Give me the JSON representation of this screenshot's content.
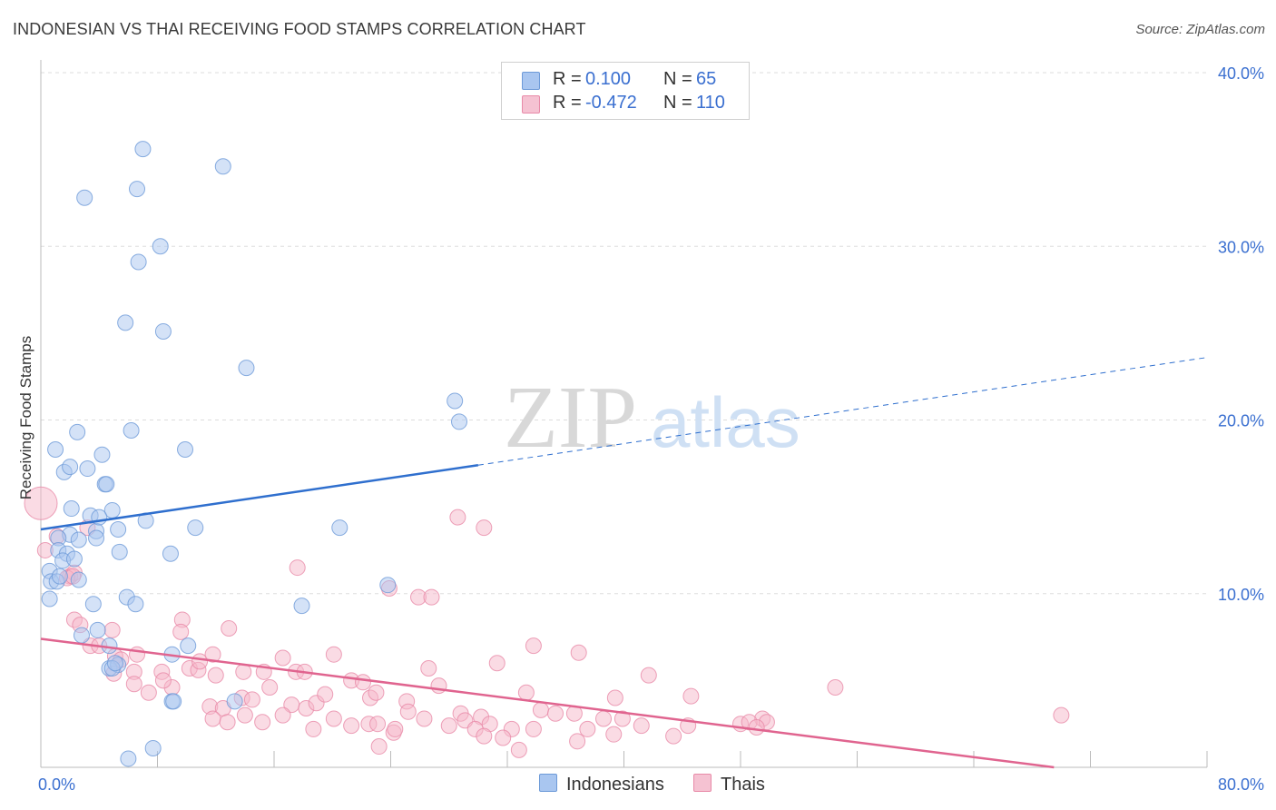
{
  "header": {
    "title": "INDONESIAN VS THAI RECEIVING FOOD STAMPS CORRELATION CHART",
    "source": "Source: ZipAtlas.com"
  },
  "watermark": {
    "zip": "ZIP",
    "atlas": "atlas"
  },
  "colors": {
    "blue_fill": "#a9c6f0",
    "blue_stroke": "#6d9ad8",
    "blue_line": "#2f6fce",
    "pink_fill": "#f5b8ca",
    "pink_stroke": "#e88aa8",
    "pink_line": "#e0648f",
    "tick_label": "#3a6fd0",
    "grid": "#dddddd"
  },
  "legend": {
    "items": [
      {
        "r_label": "R =",
        "r_value": "0.100",
        "n_label": "N =",
        "n_value": "65"
      },
      {
        "r_label": "R =",
        "r_value": "-0.472",
        "n_label": "N =",
        "n_value": "110"
      }
    ]
  },
  "bottom_legend": {
    "items": [
      "Indonesians",
      "Thais"
    ]
  },
  "chart_data": {
    "type": "scatter",
    "xlabel": "",
    "ylabel": "Receiving Food Stamps",
    "xlim": [
      0,
      80
    ],
    "ylim": [
      0,
      40
    ],
    "x_tick_labels": [
      "0.0%",
      "80.0%"
    ],
    "y_tick_values": [
      10,
      20,
      30,
      40
    ],
    "y_tick_labels": [
      "10.0%",
      "20.0%",
      "30.0%",
      "40.0%"
    ],
    "grid": true,
    "series": [
      {
        "name": "Indonesians",
        "r": 0.1,
        "n": 65,
        "trend": {
          "x0": 0,
          "y0": 13.7,
          "x1": 30,
          "y1": 17.4,
          "dash_to_x": 80,
          "dash_to_y": 23.6
        },
        "points": [
          [
            7.0,
            35.6
          ],
          [
            12.5,
            34.6
          ],
          [
            3.0,
            32.8
          ],
          [
            6.6,
            33.3
          ],
          [
            8.2,
            30.0
          ],
          [
            6.7,
            29.1
          ],
          [
            5.8,
            25.6
          ],
          [
            8.4,
            25.1
          ],
          [
            14.1,
            23.0
          ],
          [
            28.4,
            21.1
          ],
          [
            28.7,
            19.9
          ],
          [
            2.5,
            19.3
          ],
          [
            6.2,
            19.4
          ],
          [
            1.0,
            18.3
          ],
          [
            4.2,
            18.0
          ],
          [
            9.9,
            18.3
          ],
          [
            1.6,
            17.0
          ],
          [
            2.0,
            17.3
          ],
          [
            3.2,
            17.2
          ],
          [
            4.4,
            16.3
          ],
          [
            4.5,
            16.3
          ],
          [
            2.1,
            14.9
          ],
          [
            4.9,
            14.8
          ],
          [
            3.4,
            14.5
          ],
          [
            7.2,
            14.2
          ],
          [
            10.6,
            13.8
          ],
          [
            20.5,
            13.8
          ],
          [
            2.0,
            13.4
          ],
          [
            3.8,
            13.6
          ],
          [
            5.3,
            13.7
          ],
          [
            1.2,
            13.2
          ],
          [
            2.6,
            13.1
          ],
          [
            3.8,
            13.2
          ],
          [
            1.2,
            12.5
          ],
          [
            1.8,
            12.3
          ],
          [
            5.4,
            12.4
          ],
          [
            8.9,
            12.3
          ],
          [
            1.5,
            11.9
          ],
          [
            0.6,
            11.3
          ],
          [
            0.7,
            10.7
          ],
          [
            1.1,
            10.7
          ],
          [
            2.6,
            10.8
          ],
          [
            23.8,
            10.5
          ],
          [
            0.6,
            9.7
          ],
          [
            3.6,
            9.4
          ],
          [
            5.9,
            9.8
          ],
          [
            6.5,
            9.4
          ],
          [
            17.9,
            9.3
          ],
          [
            3.9,
            7.9
          ],
          [
            2.8,
            7.6
          ],
          [
            4.7,
            7.0
          ],
          [
            9.0,
            6.5
          ],
          [
            10.1,
            7.0
          ],
          [
            4.7,
            5.7
          ],
          [
            5.3,
            5.9
          ],
          [
            4.9,
            5.7
          ],
          [
            5.1,
            6.0
          ],
          [
            9.0,
            3.8
          ],
          [
            9.1,
            3.8
          ],
          [
            13.3,
            3.8
          ],
          [
            7.7,
            1.1
          ],
          [
            6.0,
            0.5
          ],
          [
            1.3,
            11.0
          ],
          [
            2.3,
            12.0
          ],
          [
            4.0,
            14.4
          ]
        ]
      },
      {
        "name": "Thais",
        "r": -0.472,
        "n": 110,
        "trend": {
          "x0": 0,
          "y0": 7.4,
          "x1": 69.5,
          "y1": 0
        },
        "points": [
          [
            0.0,
            15.2
          ],
          [
            0.3,
            12.5
          ],
          [
            1.1,
            13.3
          ],
          [
            2.0,
            11.0
          ],
          [
            2.3,
            11.2
          ],
          [
            3.2,
            13.8
          ],
          [
            1.8,
            10.9
          ],
          [
            2.2,
            11.0
          ],
          [
            17.6,
            11.5
          ],
          [
            23.9,
            10.3
          ],
          [
            25.9,
            9.8
          ],
          [
            26.8,
            9.8
          ],
          [
            28.6,
            14.4
          ],
          [
            30.4,
            13.8
          ],
          [
            2.3,
            8.5
          ],
          [
            2.7,
            8.2
          ],
          [
            4.9,
            7.9
          ],
          [
            9.7,
            8.5
          ],
          [
            12.9,
            8.0
          ],
          [
            9.6,
            7.8
          ],
          [
            3.4,
            7.0
          ],
          [
            4.0,
            7.0
          ],
          [
            5.1,
            6.4
          ],
          [
            5.5,
            6.2
          ],
          [
            6.6,
            6.5
          ],
          [
            33.8,
            7.0
          ],
          [
            36.9,
            6.6
          ],
          [
            5.0,
            5.4
          ],
          [
            6.4,
            5.5
          ],
          [
            8.3,
            5.5
          ],
          [
            9.0,
            4.6
          ],
          [
            10.2,
            5.7
          ],
          [
            10.8,
            5.6
          ],
          [
            12.0,
            5.3
          ],
          [
            13.9,
            5.5
          ],
          [
            15.3,
            5.5
          ],
          [
            16.6,
            6.3
          ],
          [
            17.5,
            5.5
          ],
          [
            18.1,
            5.5
          ],
          [
            20.1,
            6.5
          ],
          [
            21.3,
            5.0
          ],
          [
            22.1,
            4.9
          ],
          [
            26.6,
            5.7
          ],
          [
            31.3,
            6.0
          ],
          [
            41.7,
            5.3
          ],
          [
            54.5,
            4.6
          ],
          [
            6.4,
            4.8
          ],
          [
            7.4,
            4.3
          ],
          [
            8.4,
            5.0
          ],
          [
            10.9,
            6.1
          ],
          [
            11.8,
            6.5
          ],
          [
            11.6,
            3.5
          ],
          [
            12.5,
            3.4
          ],
          [
            13.8,
            4.0
          ],
          [
            14.5,
            3.9
          ],
          [
            15.7,
            4.6
          ],
          [
            17.2,
            3.6
          ],
          [
            18.2,
            3.4
          ],
          [
            18.9,
            3.7
          ],
          [
            19.5,
            4.2
          ],
          [
            22.6,
            4.0
          ],
          [
            23.0,
            4.3
          ],
          [
            25.1,
            3.8
          ],
          [
            27.3,
            4.7
          ],
          [
            28.8,
            3.1
          ],
          [
            30.2,
            2.9
          ],
          [
            33.3,
            4.3
          ],
          [
            34.3,
            3.3
          ],
          [
            36.6,
            3.1
          ],
          [
            38.6,
            2.8
          ],
          [
            39.4,
            4.0
          ],
          [
            44.6,
            4.1
          ],
          [
            48.0,
            2.5
          ],
          [
            49.5,
            2.8
          ],
          [
            49.8,
            2.6
          ],
          [
            11.8,
            2.8
          ],
          [
            12.8,
            2.6
          ],
          [
            14.0,
            3.0
          ],
          [
            15.2,
            2.6
          ],
          [
            16.6,
            3.0
          ],
          [
            18.7,
            2.2
          ],
          [
            20.1,
            2.8
          ],
          [
            21.3,
            2.4
          ],
          [
            22.5,
            2.5
          ],
          [
            23.1,
            2.5
          ],
          [
            24.2,
            2.0
          ],
          [
            25.2,
            3.2
          ],
          [
            26.3,
            2.8
          ],
          [
            28.0,
            2.4
          ],
          [
            29.1,
            2.7
          ],
          [
            29.8,
            2.2
          ],
          [
            30.8,
            2.5
          ],
          [
            32.3,
            2.2
          ],
          [
            33.8,
            2.2
          ],
          [
            35.3,
            3.1
          ],
          [
            37.5,
            2.2
          ],
          [
            39.9,
            2.8
          ],
          [
            41.2,
            2.4
          ],
          [
            43.4,
            1.8
          ],
          [
            31.7,
            1.7
          ],
          [
            36.8,
            1.5
          ],
          [
            39.3,
            1.9
          ],
          [
            44.4,
            2.4
          ],
          [
            48.6,
            2.6
          ],
          [
            49.1,
            2.3
          ],
          [
            23.2,
            1.2
          ],
          [
            24.3,
            2.2
          ],
          [
            30.4,
            1.8
          ],
          [
            32.8,
            1.0
          ],
          [
            70.0,
            3.0
          ]
        ]
      }
    ]
  }
}
